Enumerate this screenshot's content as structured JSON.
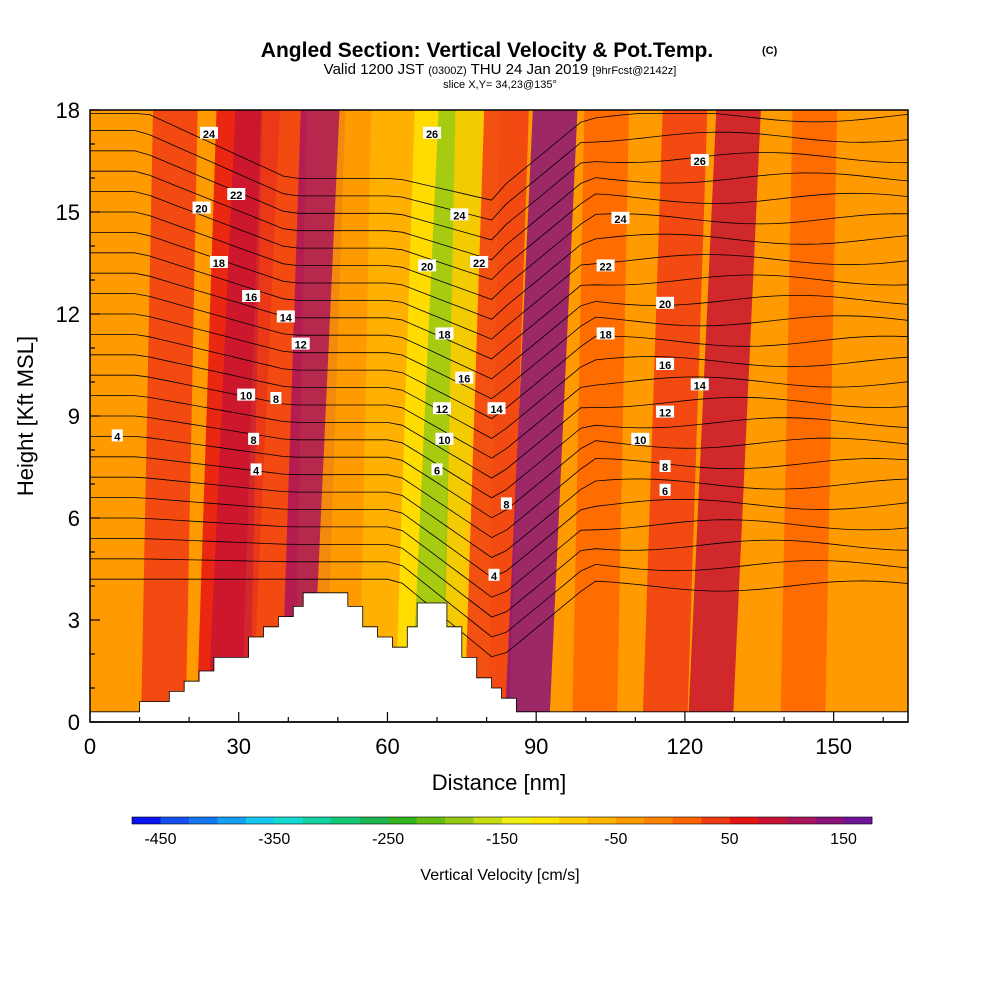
{
  "header": {
    "title": "Angled Section: Vertical Velocity & Pot.Temp.",
    "title_mark": "(C)",
    "sub_a": "Valid 1200 JST",
    "sub_b": "(0300Z)",
    "sub_c": "THU 24 Jan 2019",
    "sub_d": "[9hrFcst@2142z]",
    "slice": "slice X,Y= 34,23@135°"
  },
  "chart_data": {
    "type": "heatmap",
    "title": "Angled Section: Vertical Velocity & Pot.Temp.",
    "xlabel": "Distance [nm]",
    "ylabel": "Height [Kft MSL]",
    "xlim": [
      0,
      165
    ],
    "ylim": [
      0,
      18
    ],
    "x_ticks": [
      0,
      30,
      60,
      90,
      120,
      150
    ],
    "y_ticks": [
      0,
      3,
      6,
      9,
      12,
      15,
      18
    ],
    "colorbar": {
      "title": "Vertical Velocity [cm/s]",
      "labels": [
        "-450",
        "-350",
        "-250",
        "-150",
        "-50",
        "50",
        "150"
      ],
      "min": -475,
      "step": 25,
      "colors": [
        "#0a14f0",
        "#1450f0",
        "#1478f0",
        "#14a0f0",
        "#14c8f0",
        "#14dcd2",
        "#14d2a0",
        "#14c878",
        "#1eb450",
        "#32b41e",
        "#64be14",
        "#96c814",
        "#c8dc14",
        "#f0f014",
        "#ffe600",
        "#ffcd00",
        "#ffb400",
        "#ff9b00",
        "#ff8200",
        "#ff6400",
        "#f03c14",
        "#e61414",
        "#c81432",
        "#aa145a",
        "#8c1478",
        "#6e1496"
      ]
    },
    "vertical_velocity_bands": [
      {
        "x_center": 16,
        "value": 35
      },
      {
        "x_center": 28,
        "value": 50
      },
      {
        "x_center": 31,
        "value": 85
      },
      {
        "x_center": 38,
        "value": 40
      },
      {
        "x_center": 45,
        "value": 110
      },
      {
        "x_center": 52,
        "value": -40
      },
      {
        "x_center": 60,
        "value": -60
      },
      {
        "x_center": 68,
        "value": -120
      },
      {
        "x_center": 72,
        "value": -200
      },
      {
        "x_center": 77,
        "value": -90
      },
      {
        "x_center": 82,
        "value": 40
      },
      {
        "x_center": 91,
        "value": 140
      },
      {
        "x_center": 103,
        "value": 10
      },
      {
        "x_center": 118,
        "value": 35
      },
      {
        "x_center": 128,
        "value": 75
      },
      {
        "x_center": 145,
        "value": 0
      }
    ],
    "potential_temperature_labels": [
      {
        "text": "4",
        "x": 5.5,
        "y": 8.4
      },
      {
        "text": "24",
        "x": 24,
        "y": 17.3
      },
      {
        "text": "22",
        "x": 29.5,
        "y": 15.5
      },
      {
        "text": "20",
        "x": 22.5,
        "y": 15.1
      },
      {
        "text": "18",
        "x": 26,
        "y": 13.5
      },
      {
        "text": "16",
        "x": 32.5,
        "y": 12.5
      },
      {
        "text": "14",
        "x": 39.5,
        "y": 11.9
      },
      {
        "text": "12",
        "x": 42.5,
        "y": 11.1
      },
      {
        "text": "10",
        "x": 31.5,
        "y": 9.6
      },
      {
        "text": "8",
        "x": 37.5,
        "y": 9.5
      },
      {
        "text": "8",
        "x": 33,
        "y": 8.3
      },
      {
        "text": "4",
        "x": 33.5,
        "y": 7.4
      },
      {
        "text": "26",
        "x": 69,
        "y": 17.3
      },
      {
        "text": "24",
        "x": 74.5,
        "y": 14.9
      },
      {
        "text": "22",
        "x": 78.5,
        "y": 13.5
      },
      {
        "text": "20",
        "x": 68,
        "y": 13.4
      },
      {
        "text": "18",
        "x": 71.5,
        "y": 11.4
      },
      {
        "text": "16",
        "x": 75.5,
        "y": 10.1
      },
      {
        "text": "12",
        "x": 71,
        "y": 9.2
      },
      {
        "text": "14",
        "x": 82,
        "y": 9.2
      },
      {
        "text": "10",
        "x": 71.5,
        "y": 8.3
      },
      {
        "text": "6",
        "x": 70,
        "y": 7.4
      },
      {
        "text": "8",
        "x": 84,
        "y": 6.4
      },
      {
        "text": "4",
        "x": 81.5,
        "y": 4.3
      },
      {
        "text": "26",
        "x": 123,
        "y": 16.5
      },
      {
        "text": "24",
        "x": 107,
        "y": 14.8
      },
      {
        "text": "22",
        "x": 104,
        "y": 13.4
      },
      {
        "text": "20",
        "x": 116,
        "y": 12.3
      },
      {
        "text": "18",
        "x": 104,
        "y": 11.4
      },
      {
        "text": "16",
        "x": 116,
        "y": 10.5
      },
      {
        "text": "14",
        "x": 123,
        "y": 9.9
      },
      {
        "text": "12",
        "x": 116,
        "y": 9.1
      },
      {
        "text": "10",
        "x": 111,
        "y": 8.3
      },
      {
        "text": "8",
        "x": 116,
        "y": 7.5
      },
      {
        "text": "6",
        "x": 116,
        "y": 6.8
      }
    ],
    "terrain": [
      [
        0,
        0.3
      ],
      [
        10,
        0.3
      ],
      [
        10,
        0.6
      ],
      [
        16,
        0.6
      ],
      [
        16,
        0.9
      ],
      [
        19,
        0.9
      ],
      [
        19,
        1.2
      ],
      [
        22,
        1.2
      ],
      [
        22,
        1.5
      ],
      [
        25,
        1.5
      ],
      [
        25,
        1.9
      ],
      [
        32,
        1.9
      ],
      [
        32,
        2.5
      ],
      [
        35,
        2.5
      ],
      [
        35,
        2.8
      ],
      [
        38,
        2.8
      ],
      [
        38,
        3.1
      ],
      [
        41,
        3.1
      ],
      [
        41,
        3.4
      ],
      [
        43,
        3.4
      ],
      [
        43,
        3.8
      ],
      [
        52,
        3.8
      ],
      [
        52,
        3.4
      ],
      [
        55,
        3.4
      ],
      [
        55,
        2.8
      ],
      [
        58,
        2.8
      ],
      [
        58,
        2.5
      ],
      [
        61,
        2.5
      ],
      [
        61,
        2.2
      ],
      [
        64,
        2.2
      ],
      [
        64,
        2.8
      ],
      [
        66,
        2.8
      ],
      [
        66,
        3.5
      ],
      [
        72,
        3.5
      ],
      [
        72,
        2.8
      ],
      [
        75,
        2.8
      ],
      [
        75,
        1.9
      ],
      [
        78,
        1.9
      ],
      [
        78,
        1.3
      ],
      [
        81,
        1.3
      ],
      [
        81,
        1.0
      ],
      [
        83,
        1.0
      ],
      [
        83,
        0.7
      ],
      [
        86,
        0.7
      ],
      [
        86,
        0.3
      ],
      [
        165,
        0.3
      ]
    ],
    "grid": false
  }
}
